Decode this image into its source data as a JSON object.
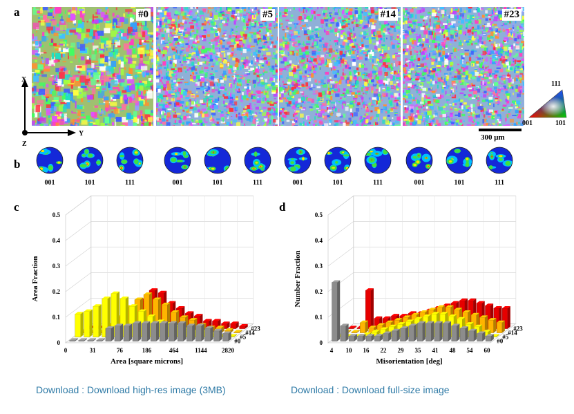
{
  "panels": {
    "a": "a",
    "b": "b",
    "c": "c",
    "d": "d"
  },
  "ebsd_maps": [
    {
      "label": "#0",
      "seed": 11,
      "grain": "coarse"
    },
    {
      "label": "#5",
      "seed": 23,
      "grain": "fine"
    },
    {
      "label": "#14",
      "seed": 37,
      "grain": "fine"
    },
    {
      "label": "#23",
      "seed": 53,
      "grain": "fine"
    }
  ],
  "sample_axes": {
    "x": "X",
    "y": "Y",
    "z": "Z"
  },
  "ipf_key": {
    "top": "111",
    "left": "001",
    "right": "101"
  },
  "scale_bar": {
    "label": "300 μm"
  },
  "pole_figures": [
    {
      "labels": [
        "001",
        "101",
        "111"
      ]
    },
    {
      "labels": [
        "001",
        "101",
        "111"
      ]
    },
    {
      "labels": [
        "001",
        "101",
        "111"
      ]
    },
    {
      "labels": [
        "001",
        "101",
        "111"
      ]
    }
  ],
  "chart_data": [
    {
      "type": "bar",
      "panel": "c",
      "xlabel": "Area [square microns]",
      "ylabel": "Area Fraction",
      "ylim": [
        0,
        0.5
      ],
      "yticks": [
        "0",
        "0.1",
        "0.2",
        "0.3",
        "0.4",
        "0.5"
      ],
      "xtick_labels": [
        "0",
        "31",
        "76",
        "186",
        "464",
        "1144",
        "2820"
      ],
      "series": [
        {
          "name": "#0",
          "color": "#8c8c8c",
          "values": [
            0.0,
            0.0,
            0.0,
            0.0,
            0.05,
            0.06,
            0.06,
            0.07,
            0.07,
            0.07,
            0.07,
            0.07,
            0.07,
            0.06,
            0.06,
            0.05,
            0.04,
            0.03
          ]
        },
        {
          "name": "#5",
          "color": "#ffff00",
          "values": [
            0.09,
            0.1,
            0.12,
            0.15,
            0.17,
            0.15,
            0.12,
            0.1,
            0.08,
            0.06,
            0.05,
            0.04,
            0.03,
            0.02,
            0.02,
            0.01,
            0.0,
            0.0
          ]
        },
        {
          "name": "#14",
          "color": "#ffb400",
          "values": [
            0.0,
            0.0,
            0.0,
            0.03,
            0.06,
            0.1,
            0.13,
            0.15,
            0.13,
            0.11,
            0.08,
            0.06,
            0.05,
            0.03,
            0.02,
            0.02,
            0.01,
            0.0
          ]
        },
        {
          "name": "#23",
          "color": "#e60000",
          "values": [
            0.0,
            0.0,
            0.0,
            0.0,
            0.03,
            0.07,
            0.11,
            0.15,
            0.14,
            0.1,
            0.08,
            0.06,
            0.05,
            0.03,
            0.03,
            0.02,
            0.02,
            0.01
          ]
        }
      ]
    },
    {
      "type": "bar",
      "panel": "d",
      "xlabel": "Misorientation [deg]",
      "ylabel": "Number Fraction",
      "ylim": [
        0,
        0.5
      ],
      "yticks": [
        "0",
        "0.1",
        "0.2",
        "0.3",
        "0.4",
        "0.5"
      ],
      "xtick_labels": [
        "4",
        "10",
        "16",
        "22",
        "29",
        "35",
        "41",
        "48",
        "54",
        "60"
      ],
      "series": [
        {
          "name": "#0",
          "color": "#8c8c8c",
          "values": [
            0.23,
            0.06,
            0.02,
            0.02,
            0.02,
            0.02,
            0.03,
            0.04,
            0.05,
            0.06,
            0.07,
            0.07,
            0.07,
            0.07,
            0.06,
            0.05,
            0.04,
            0.03,
            0.02
          ]
        },
        {
          "name": "#5",
          "color": "#ffff00",
          "values": [
            0.0,
            0.0,
            0.0,
            0.01,
            0.02,
            0.03,
            0.04,
            0.05,
            0.06,
            0.07,
            0.08,
            0.09,
            0.09,
            0.08,
            0.07,
            0.05,
            0.04,
            0.02,
            0.0
          ]
        },
        {
          "name": "#14",
          "color": "#ffb400",
          "values": [
            0.0,
            0.0,
            0.04,
            0.02,
            0.03,
            0.04,
            0.05,
            0.06,
            0.07,
            0.08,
            0.09,
            0.1,
            0.1,
            0.09,
            0.08,
            0.07,
            0.06,
            0.05,
            0.04
          ]
        },
        {
          "name": "#23",
          "color": "#e60000",
          "values": [
            0.0,
            0.0,
            0.15,
            0.04,
            0.04,
            0.05,
            0.05,
            0.06,
            0.06,
            0.07,
            0.08,
            0.09,
            0.1,
            0.11,
            0.11,
            0.1,
            0.09,
            0.08,
            0.08
          ]
        }
      ]
    }
  ],
  "footer": {
    "link_highres": "Download : Download high-res image (3MB)",
    "link_fullsize": "Download : Download full-size image"
  }
}
